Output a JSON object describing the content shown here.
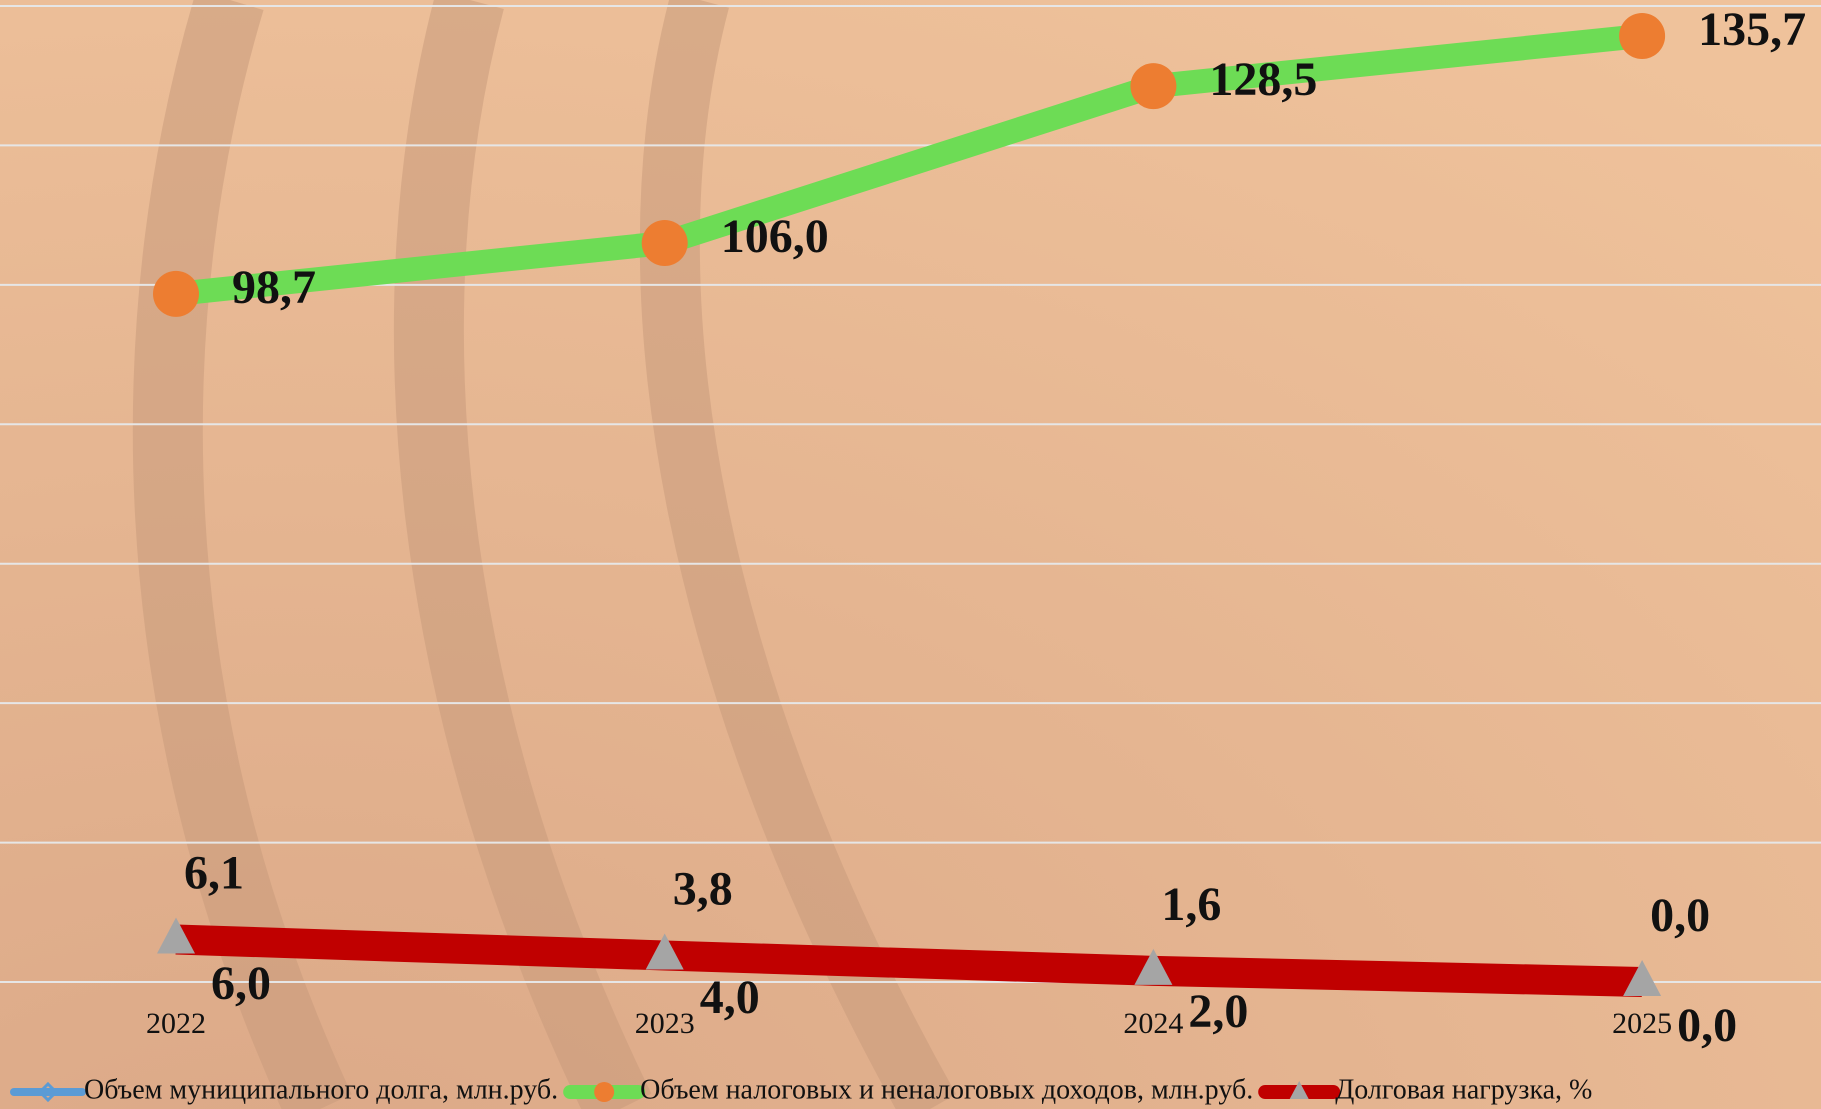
{
  "chart_data": {
    "type": "line",
    "categories": [
      "2022",
      "2023",
      "2024",
      "2025"
    ],
    "series": [
      {
        "name": "Объем муниципального долга, млн.руб.",
        "color": "#5b9bd5",
        "marker": "diamond",
        "marker_color": "#5b9bd5",
        "values": [
          6.0,
          4.0,
          2.0,
          0.0
        ],
        "value_labels": [
          "6,0",
          "4,0",
          "2,0",
          "0,0"
        ]
      },
      {
        "name": "Объем налоговых и неналоговых доходов, млн.руб.",
        "color": "#6ddc55",
        "marker": "circle",
        "marker_color": "#ed7d31",
        "values": [
          98.7,
          106.0,
          128.5,
          135.7
        ],
        "value_labels": [
          "98,7",
          "106,0",
          "128,5",
          "135,7"
        ]
      },
      {
        "name": "Долговая нагрузка, %",
        "color": "#c00000",
        "marker": "triangle",
        "marker_color": "#a5a5a5",
        "values": [
          6.1,
          3.8,
          1.6,
          0.0
        ],
        "value_labels": [
          "6,1",
          "3,8",
          "1,6",
          "0,0"
        ]
      }
    ],
    "ylim": [
      0,
      140
    ],
    "yticks": [
      0,
      20,
      40,
      60,
      80,
      100,
      120,
      140
    ],
    "grid": true,
    "legend": "bottom"
  }
}
